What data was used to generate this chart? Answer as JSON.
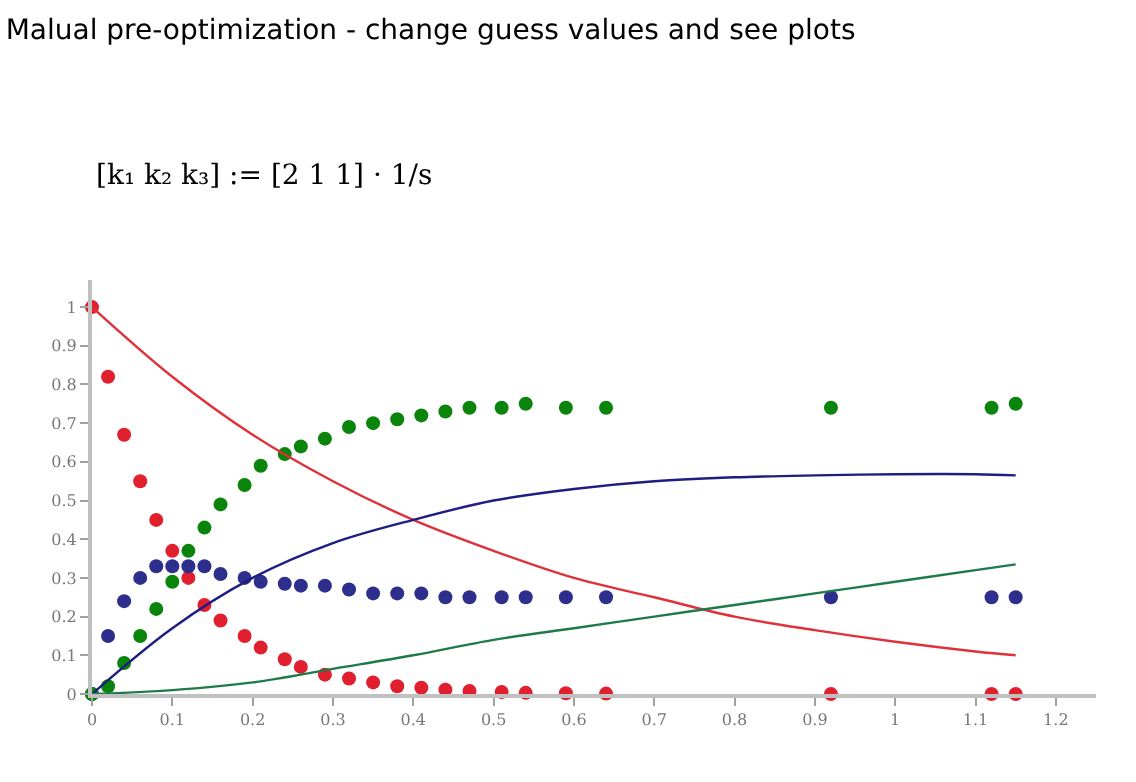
{
  "chart_data": {
    "type": "scatter",
    "title": "Malual pre-optimization - change guess values and see plots",
    "annotations": [
      "[k₁ k₂ k₃] := [2 1 1] · 1/s"
    ],
    "x": [
      0,
      0.02,
      0.04,
      0.06,
      0.08,
      0.1,
      0.12,
      0.14,
      0.16,
      0.19,
      0.21,
      0.24,
      0.26,
      0.29,
      0.32,
      0.35,
      0.38,
      0.41,
      0.44,
      0.47,
      0.51,
      0.54,
      0.59,
      0.64,
      0.92,
      1.12,
      1.15
    ],
    "series": [
      {
        "marker": "circle",
        "color": "#e0202e",
        "values": [
          1,
          0.82,
          0.67,
          0.55,
          0.45,
          0.37,
          0.3,
          0.23,
          0.19,
          0.15,
          0.12,
          0.09,
          0.07,
          0.05,
          0.04,
          0.03,
          0.02,
          0.016,
          0.011,
          0.008,
          0.005,
          0.003,
          0.002,
          0.001,
          0,
          0,
          0
        ]
      },
      {
        "marker": "circle",
        "color": "#2e2e8c",
        "values": [
          0,
          0.15,
          0.24,
          0.3,
          0.33,
          0.33,
          0.33,
          0.33,
          0.31,
          0.3,
          0.29,
          0.285,
          0.28,
          0.28,
          0.27,
          0.26,
          0.26,
          0.26,
          0.25,
          0.25,
          0.25,
          0.25,
          0.25,
          0.25,
          0.25,
          0.25,
          0.25
        ]
      },
      {
        "marker": "circle",
        "color": "#0a840a",
        "values": [
          0,
          0.02,
          0.08,
          0.15,
          0.22,
          0.29,
          0.37,
          0.43,
          0.49,
          0.54,
          0.59,
          0.62,
          0.64,
          0.66,
          0.69,
          0.7,
          0.71,
          0.72,
          0.73,
          0.74,
          0.74,
          0.75,
          0.74,
          0.74,
          0.74,
          0.74,
          0.75
        ]
      },
      {
        "type": "line",
        "marker": "none",
        "color": "#e0303a",
        "x": [
          0,
          0.1,
          0.2,
          0.3,
          0.4,
          0.5,
          0.6,
          0.7,
          0.8,
          0.9,
          1,
          1.1,
          1.15
        ],
        "values": [
          1,
          0.82,
          0.67,
          0.55,
          0.45,
          0.37,
          0.3,
          0.25,
          0.2,
          0.165,
          0.135,
          0.11,
          0.1
        ]
      },
      {
        "type": "line",
        "marker": "none",
        "color": "#1e1e80",
        "x": [
          0,
          0.1,
          0.2,
          0.3,
          0.4,
          0.5,
          0.6,
          0.7,
          0.8,
          0.9,
          1,
          1.1,
          1.15
        ],
        "values": [
          0,
          0.17,
          0.3,
          0.39,
          0.45,
          0.5,
          0.53,
          0.55,
          0.56,
          0.565,
          0.568,
          0.568,
          0.565
        ]
      },
      {
        "type": "line",
        "marker": "none",
        "color": "#1f7a4a",
        "x": [
          0,
          0.1,
          0.2,
          0.3,
          0.4,
          0.5,
          0.6,
          0.7,
          0.8,
          0.9,
          1,
          1.1,
          1.15
        ],
        "values": [
          0,
          0.01,
          0.03,
          0.065,
          0.1,
          0.14,
          0.17,
          0.2,
          0.23,
          0.26,
          0.29,
          0.32,
          0.335
        ]
      }
    ],
    "xlim": [
      0,
      1.25
    ],
    "xticks": [
      0,
      0.1,
      0.2,
      0.3,
      0.4,
      0.5,
      0.6,
      0.7,
      0.8,
      0.9,
      1,
      1.1,
      1.2
    ],
    "ylim": [
      0,
      1.07
    ],
    "yticks": [
      0,
      0.1,
      0.2,
      0.3,
      0.4,
      0.5,
      0.6,
      0.7,
      0.8,
      0.9,
      1
    ],
    "grid": false
  }
}
